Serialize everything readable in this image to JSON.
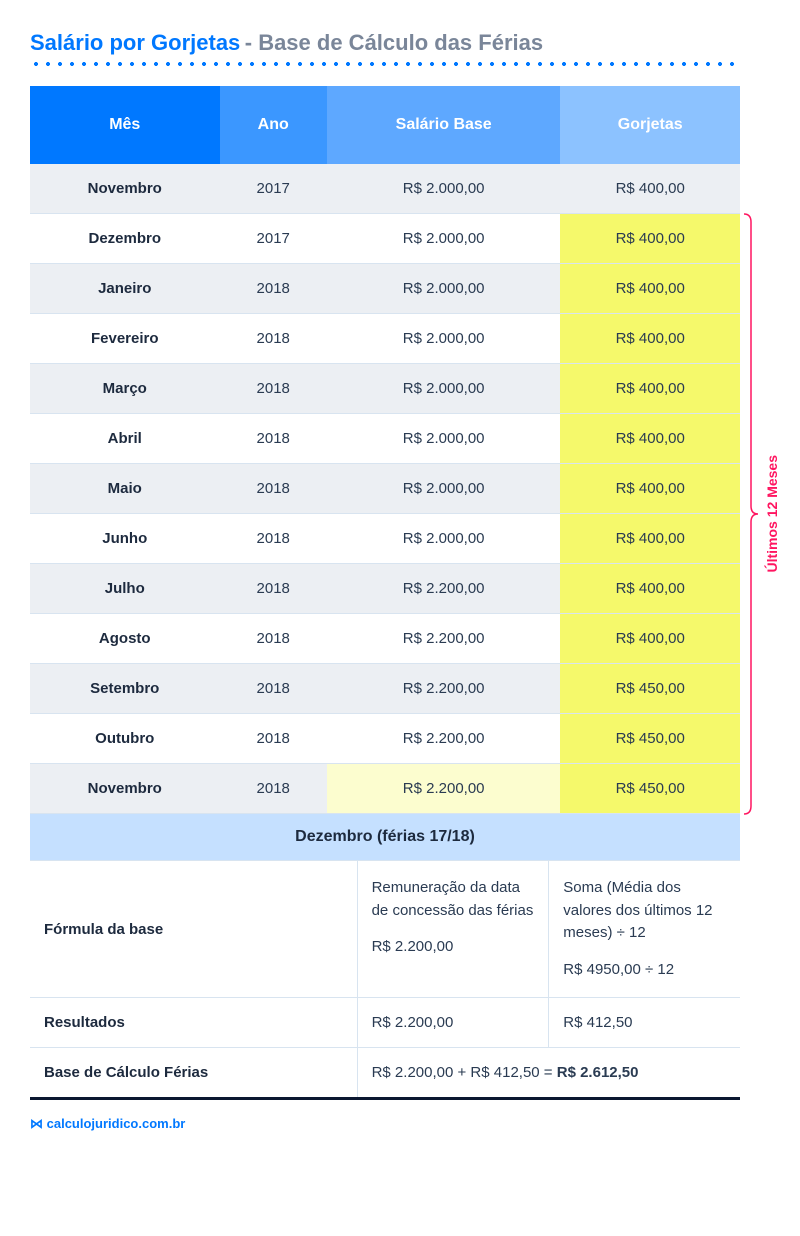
{
  "title": {
    "blue": "Salário por Gorjetas",
    "gray": "- Base de Cálculo das Férias"
  },
  "table": {
    "headers": [
      "Mês",
      "Ano",
      "Salário Base",
      "Gorjetas"
    ],
    "header_bg_colors": [
      "#0078ff",
      "#3b97ff",
      "#5ea8ff",
      "#8cc2ff"
    ],
    "rows": [
      {
        "mes": "Novembro",
        "ano": "2017",
        "salario": "R$ 2.000,00",
        "gorjetas": "R$ 400,00",
        "hl_sal": false,
        "hl_gorj": false
      },
      {
        "mes": "Dezembro",
        "ano": "2017",
        "salario": "R$ 2.000,00",
        "gorjetas": "R$ 400,00",
        "hl_sal": false,
        "hl_gorj": true
      },
      {
        "mes": "Janeiro",
        "ano": "2018",
        "salario": "R$ 2.000,00",
        "gorjetas": "R$ 400,00",
        "hl_sal": false,
        "hl_gorj": true
      },
      {
        "mes": "Fevereiro",
        "ano": "2018",
        "salario": "R$ 2.000,00",
        "gorjetas": "R$ 400,00",
        "hl_sal": false,
        "hl_gorj": true
      },
      {
        "mes": "Março",
        "ano": "2018",
        "salario": "R$ 2.000,00",
        "gorjetas": "R$ 400,00",
        "hl_sal": false,
        "hl_gorj": true
      },
      {
        "mes": "Abril",
        "ano": "2018",
        "salario": "R$ 2.000,00",
        "gorjetas": "R$ 400,00",
        "hl_sal": false,
        "hl_gorj": true
      },
      {
        "mes": "Maio",
        "ano": "2018",
        "salario": "R$ 2.000,00",
        "gorjetas": "R$ 400,00",
        "hl_sal": false,
        "hl_gorj": true
      },
      {
        "mes": "Junho",
        "ano": "2018",
        "salario": "R$ 2.000,00",
        "gorjetas": "R$ 400,00",
        "hl_sal": false,
        "hl_gorj": true
      },
      {
        "mes": "Julho",
        "ano": "2018",
        "salario": "R$ 2.200,00",
        "gorjetas": "R$ 400,00",
        "hl_sal": false,
        "hl_gorj": true
      },
      {
        "mes": "Agosto",
        "ano": "2018",
        "salario": "R$ 2.200,00",
        "gorjetas": "R$ 400,00",
        "hl_sal": false,
        "hl_gorj": true
      },
      {
        "mes": "Setembro",
        "ano": "2018",
        "salario": "R$ 2.200,00",
        "gorjetas": "R$ 450,00",
        "hl_sal": false,
        "hl_gorj": true
      },
      {
        "mes": "Outubro",
        "ano": "2018",
        "salario": "R$ 2.200,00",
        "gorjetas": "R$ 450,00",
        "hl_sal": false,
        "hl_gorj": true
      },
      {
        "mes": "Novembro",
        "ano": "2018",
        "salario": "R$ 2.200,00",
        "gorjetas": "R$ 450,00",
        "hl_sal": "light",
        "hl_gorj": true
      }
    ]
  },
  "section_banner": "Dezembro (férias 17/18)",
  "formula": {
    "label": "Fórmula da base",
    "col2_top": "Remuneração da data de concessão das férias",
    "col2_val": "R$ 2.200,00",
    "col3_top": "Soma (Média dos valores dos últimos 12 meses) ÷ 12",
    "col3_val": "R$ 4950,00 ÷ 12"
  },
  "results": {
    "label": "Resultados",
    "col2": "R$ 2.200,00",
    "col3": "R$ 412,50"
  },
  "base_calc": {
    "label": "Base de Cálculo Férias",
    "expr_prefix": "R$ 2.200,00 + R$ 412,50 = ",
    "expr_bold": "R$ 2.612,50"
  },
  "bracket_label": "Últimos 12 Meses",
  "footer": "calculojuridico.com.br",
  "colors": {
    "blue": "#0078ff",
    "gray_text": "#7a8699",
    "dark_text": "#1d2a3e",
    "body_text": "#2a3b52",
    "row_alt": "#eceff3",
    "border": "#d8e4f0",
    "highlight_yellow": "#f5f96b",
    "highlight_yellow_light": "#fcfdcf",
    "banner_bg": "#c5e0ff",
    "bracket_red": "#ff1560"
  }
}
